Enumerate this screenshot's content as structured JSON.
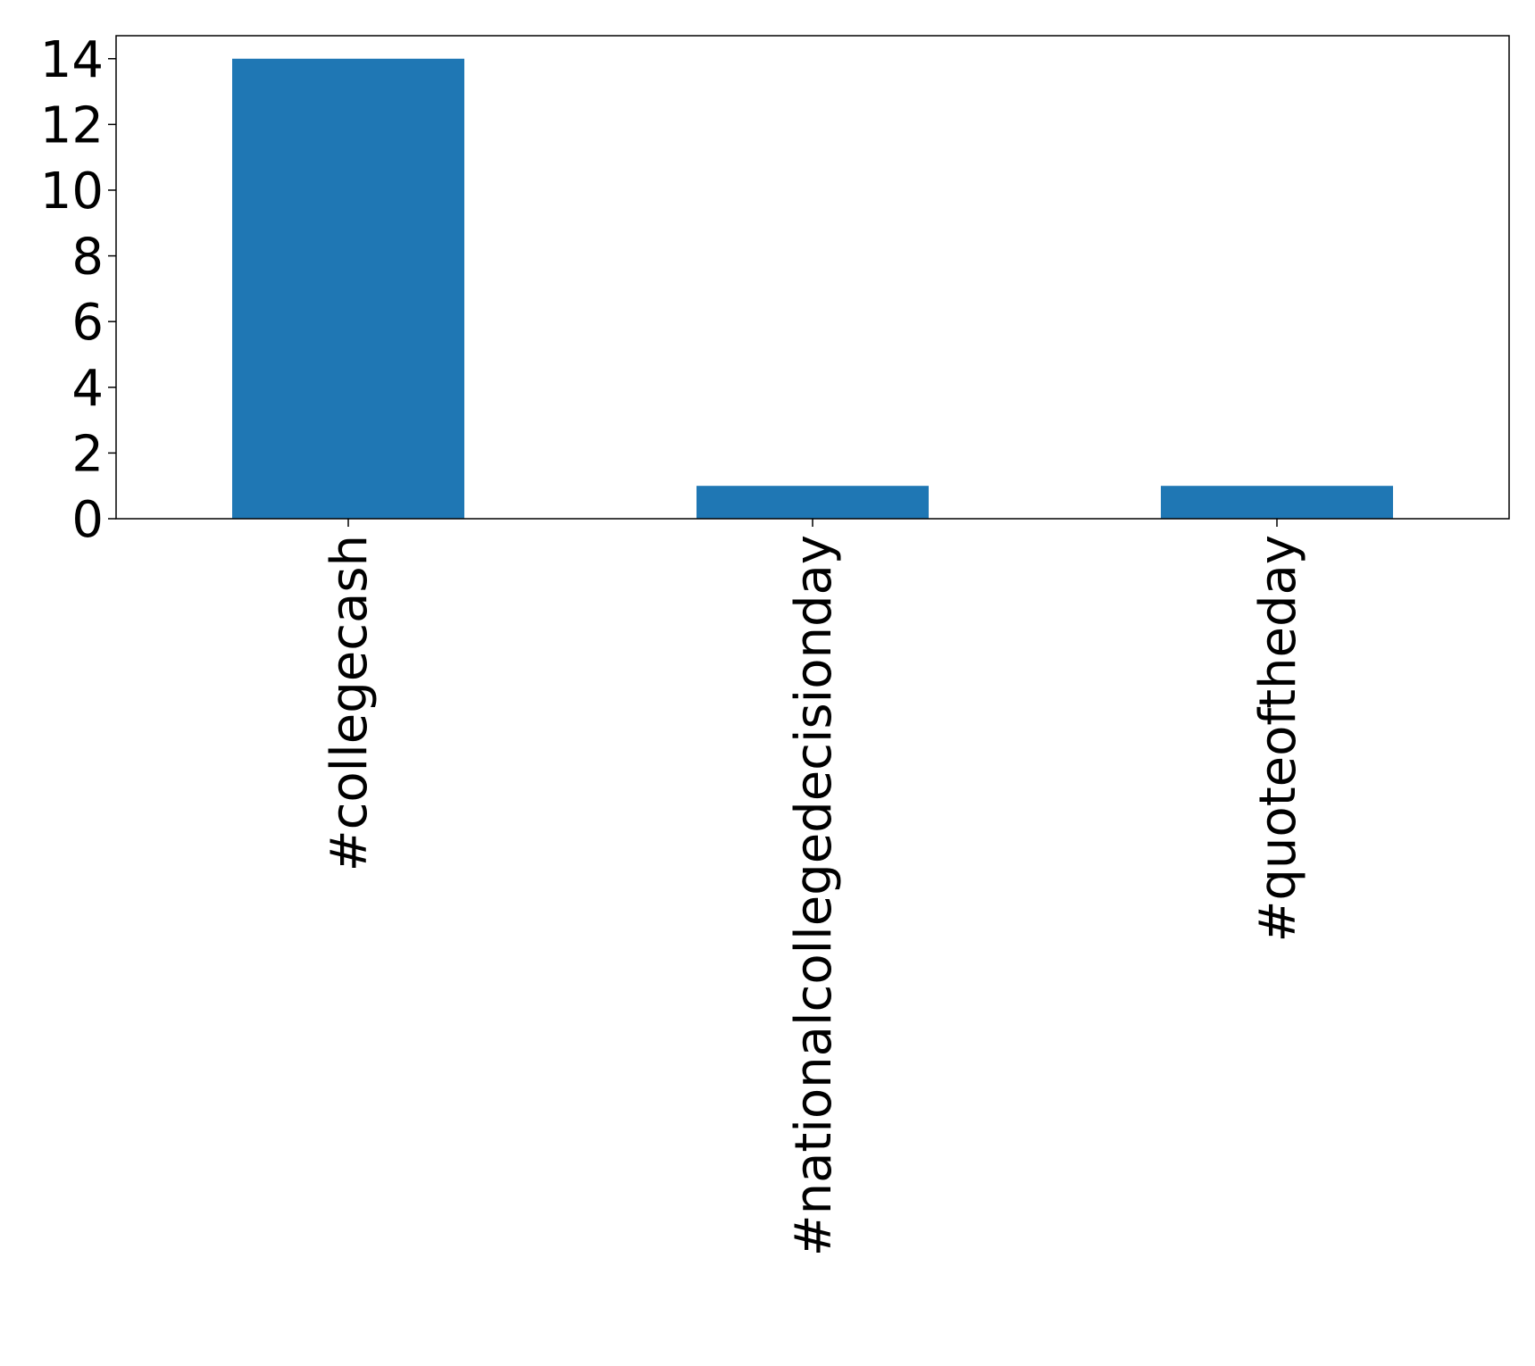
{
  "chart_data": {
    "type": "bar",
    "title": "",
    "xlabel": "",
    "ylabel": "",
    "categories": [
      "#collegecash",
      "#nationalcollegedecisionday",
      "#quoteoftheday"
    ],
    "values": [
      14,
      1,
      1
    ],
    "ylim": [
      0,
      14.7
    ],
    "yticks": [
      0,
      2,
      4,
      6,
      8,
      10,
      12,
      14
    ],
    "grid": false,
    "legend": "none",
    "bar_color": "#1f77b4"
  }
}
